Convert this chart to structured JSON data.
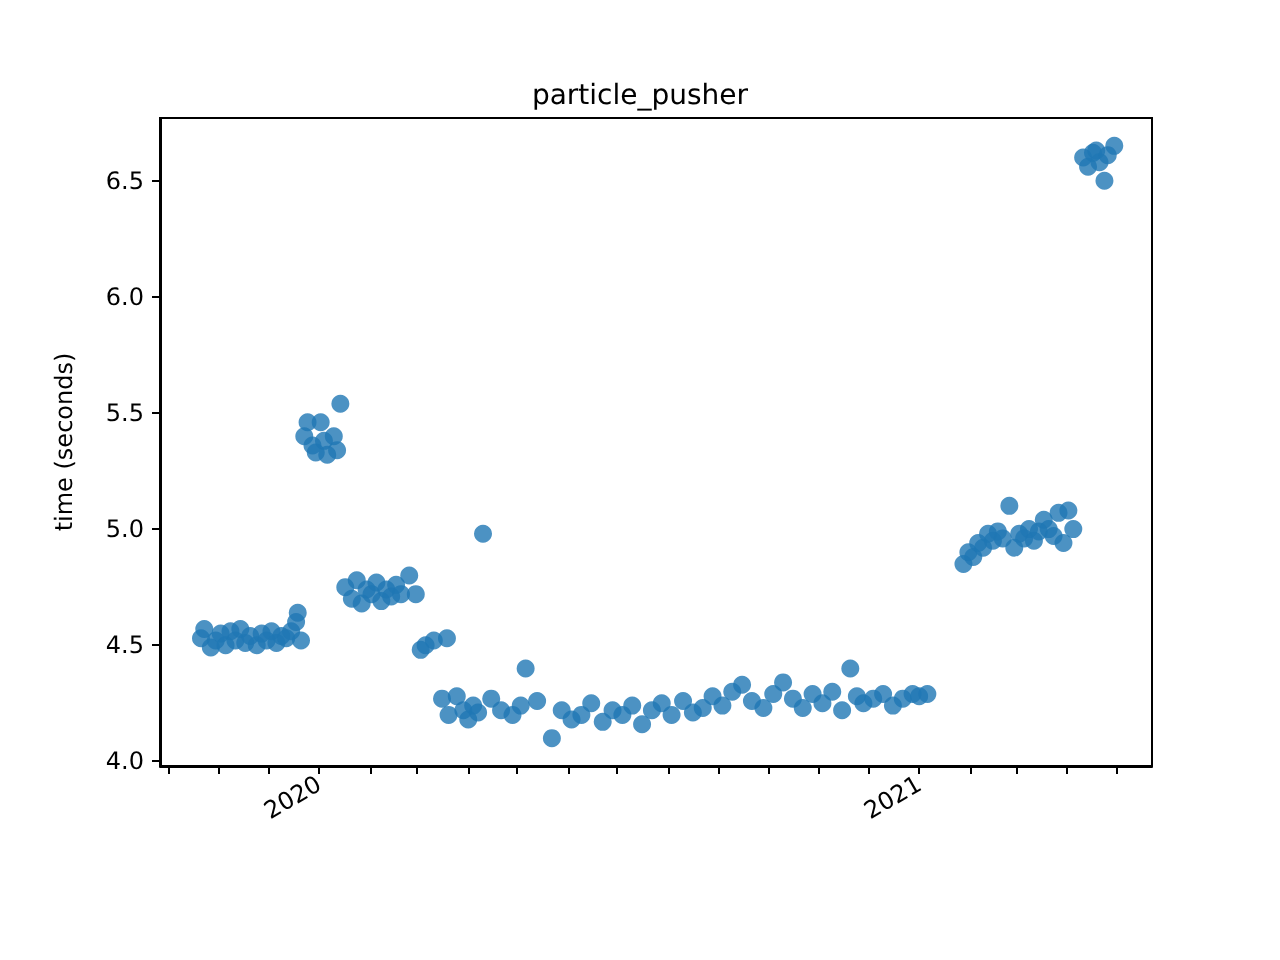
{
  "chart_data": {
    "type": "scatter",
    "title": "particle_pusher",
    "ylabel": "time (seconds)",
    "marker": "circle",
    "grid": false,
    "xlim": [
      "2019-09-26",
      "2021-05-23"
    ],
    "ylim": [
      3.98,
      6.77
    ],
    "xticks": [
      {
        "value": "2019-10-01",
        "label": null
      },
      {
        "value": "2019-11-01",
        "label": null
      },
      {
        "value": "2019-12-01",
        "label": null
      },
      {
        "value": "2020-01-01",
        "label": "2020"
      },
      {
        "value": "2020-02-01",
        "label": null
      },
      {
        "value": "2020-03-01",
        "label": null
      },
      {
        "value": "2020-04-01",
        "label": null
      },
      {
        "value": "2020-05-01",
        "label": null
      },
      {
        "value": "2020-06-01",
        "label": null
      },
      {
        "value": "2020-07-01",
        "label": null
      },
      {
        "value": "2020-08-01",
        "label": null
      },
      {
        "value": "2020-09-01",
        "label": null
      },
      {
        "value": "2020-10-01",
        "label": null
      },
      {
        "value": "2020-11-01",
        "label": null
      },
      {
        "value": "2020-12-01",
        "label": null
      },
      {
        "value": "2021-01-01",
        "label": "2021"
      },
      {
        "value": "2021-02-01",
        "label": null
      },
      {
        "value": "2021-03-01",
        "label": null
      },
      {
        "value": "2021-04-01",
        "label": null
      },
      {
        "value": "2021-05-01",
        "label": null
      }
    ],
    "yticks": [
      {
        "value": 4,
        "label": "4.0"
      },
      {
        "value": 4.5,
        "label": "4.5"
      },
      {
        "value": 5,
        "label": "5.0"
      },
      {
        "value": 5.5,
        "label": "5.5"
      },
      {
        "value": 6,
        "label": "6.0"
      },
      {
        "value": 6.5,
        "label": "6.5"
      }
    ],
    "series": [
      {
        "color": "#1f77b4",
        "x": [
          "2019-10-21",
          "2019-10-23",
          "2019-10-27",
          "2019-10-30",
          "2019-11-02",
          "2019-11-05",
          "2019-11-08",
          "2019-11-11",
          "2019-11-14",
          "2019-11-17",
          "2019-11-20",
          "2019-11-24",
          "2019-11-27",
          "2019-11-30",
          "2019-12-03",
          "2019-12-06",
          "2019-12-09",
          "2019-12-12",
          "2019-12-15",
          "2019-12-18",
          "2019-12-19",
          "2019-12-21",
          "2019-12-23",
          "2019-12-25",
          "2019-12-28",
          "2019-12-30",
          "2020-01-02",
          "2020-01-04",
          "2020-01-06",
          "2020-01-10",
          "2020-01-14",
          "2020-01-12",
          "2020-01-17",
          "2020-01-21",
          "2020-01-24",
          "2020-01-27",
          "2020-01-30",
          "2020-02-02",
          "2020-02-05",
          "2020-02-08",
          "2020-02-11",
          "2020-02-14",
          "2020-02-17",
          "2020-02-20",
          "2020-02-25",
          "2020-02-29",
          "2020-03-03",
          "2020-03-06",
          "2020-03-19",
          "2020-03-11",
          "2020-03-16",
          "2020-03-20",
          "2020-03-25",
          "2020-03-29",
          "2020-04-01",
          "2020-04-04",
          "2020-04-07",
          "2020-04-10",
          "2020-04-15",
          "2020-04-21",
          "2020-04-28",
          "2020-05-06",
          "2020-05-03",
          "2020-05-13",
          "2020-05-22",
          "2020-05-28",
          "2020-06-03",
          "2020-06-09",
          "2020-06-15",
          "2020-06-22",
          "2020-06-28",
          "2020-07-04",
          "2020-07-10",
          "2020-07-16",
          "2020-07-22",
          "2020-07-28",
          "2020-08-03",
          "2020-08-10",
          "2020-08-16",
          "2020-08-22",
          "2020-08-28",
          "2020-09-03",
          "2020-09-09",
          "2020-09-15",
          "2020-09-21",
          "2020-09-28",
          "2020-10-04",
          "2020-10-10",
          "2020-10-16",
          "2020-10-22",
          "2020-10-28",
          "2020-11-03",
          "2020-11-09",
          "2020-11-15",
          "2020-11-20",
          "2020-11-24",
          "2020-11-28",
          "2020-12-04",
          "2020-12-10",
          "2020-12-16",
          "2020-12-22",
          "2020-12-28",
          "2021-01-01",
          "2021-01-06",
          "2021-01-28",
          "2021-01-31",
          "2021-02-03",
          "2021-02-06",
          "2021-02-09",
          "2021-02-12",
          "2021-02-15",
          "2021-02-18",
          "2021-02-21",
          "2021-02-28",
          "2021-02-25",
          "2021-03-03",
          "2021-03-06",
          "2021-03-09",
          "2021-03-12",
          "2021-03-15",
          "2021-03-18",
          "2021-03-21",
          "2021-03-24",
          "2021-03-27",
          "2021-03-30",
          "2021-04-02",
          "2021-04-05",
          "2021-04-11",
          "2021-04-14",
          "2021-04-17",
          "2021-04-19",
          "2021-04-21",
          "2021-04-24",
          "2021-04-26",
          "2021-04-30"
        ],
        "values": [
          4.53,
          4.57,
          4.49,
          4.52,
          4.55,
          4.5,
          4.56,
          4.52,
          4.57,
          4.51,
          4.54,
          4.5,
          4.55,
          4.52,
          4.56,
          4.51,
          4.54,
          4.53,
          4.56,
          4.6,
          4.64,
          4.52,
          5.4,
          5.46,
          5.36,
          5.33,
          5.46,
          5.38,
          5.32,
          5.4,
          5.54,
          5.34,
          4.75,
          4.7,
          4.78,
          4.68,
          4.74,
          4.72,
          4.77,
          4.69,
          4.74,
          4.71,
          4.76,
          4.72,
          4.8,
          4.72,
          4.48,
          4.5,
          4.53,
          4.52,
          4.27,
          4.2,
          4.28,
          4.22,
          4.18,
          4.24,
          4.21,
          4.98,
          4.27,
          4.22,
          4.2,
          4.4,
          4.24,
          4.26,
          4.1,
          4.22,
          4.18,
          4.2,
          4.25,
          4.17,
          4.22,
          4.2,
          4.24,
          4.16,
          4.22,
          4.25,
          4.2,
          4.26,
          4.21,
          4.23,
          4.28,
          4.24,
          4.3,
          4.33,
          4.26,
          4.23,
          4.29,
          4.34,
          4.27,
          4.23,
          4.29,
          4.25,
          4.3,
          4.22,
          4.4,
          4.28,
          4.25,
          4.27,
          4.29,
          4.24,
          4.27,
          4.29,
          4.28,
          4.29,
          4.85,
          4.9,
          4.88,
          4.94,
          4.92,
          4.98,
          4.95,
          4.99,
          4.96,
          4.92,
          5.1,
          4.98,
          4.96,
          5.0,
          4.95,
          4.99,
          5.04,
          5.0,
          4.97,
          5.07,
          4.94,
          5.08,
          5.0,
          6.6,
          6.56,
          6.62,
          6.63,
          6.58,
          6.5,
          6.61,
          6.65
        ]
      }
    ]
  }
}
